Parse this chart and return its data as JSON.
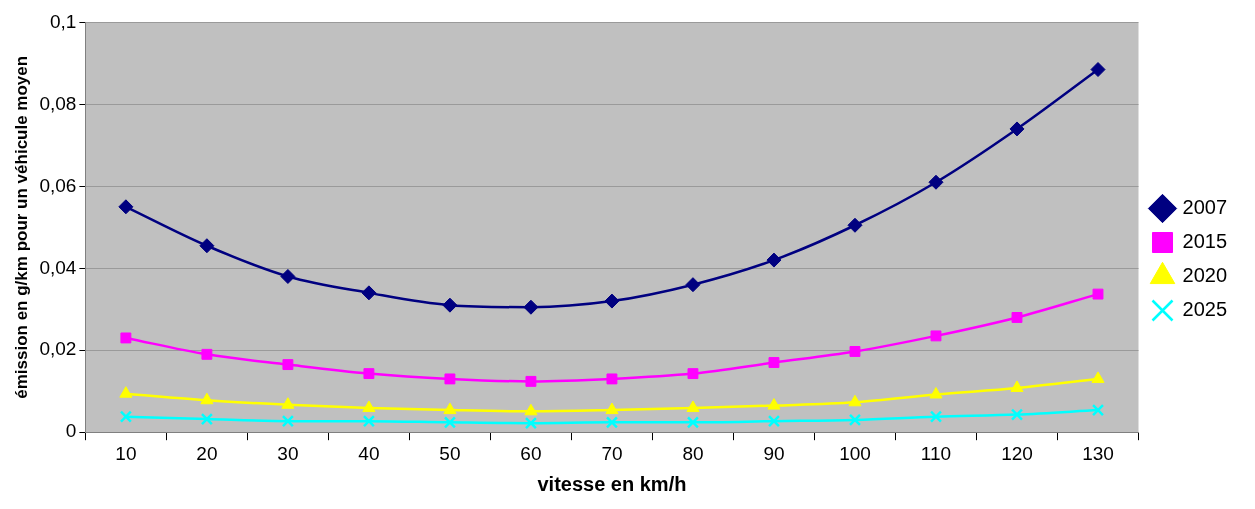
{
  "chart_data": {
    "type": "line",
    "xlabel": "vitesse en km/h",
    "ylabel": "émission en g/km pour un véhicule moyen",
    "categories": [
      "10",
      "20",
      "30",
      "40",
      "50",
      "60",
      "70",
      "80",
      "90",
      "100",
      "110",
      "120",
      "130"
    ],
    "series": [
      {
        "name": "2007",
        "color": "#000080",
        "marker": "diamond",
        "values": [
          0.055,
          0.0455,
          0.038,
          0.034,
          0.031,
          0.0305,
          0.032,
          0.036,
          0.042,
          0.0505,
          0.061,
          0.074,
          0.0885
        ]
      },
      {
        "name": "2015",
        "color": "#ff00ff",
        "marker": "square",
        "values": [
          0.023,
          0.019,
          0.0165,
          0.0143,
          0.013,
          0.0124,
          0.013,
          0.0143,
          0.017,
          0.0197,
          0.0235,
          0.028,
          0.0337
        ]
      },
      {
        "name": "2020",
        "color": "#ffff00",
        "marker": "triangle",
        "values": [
          0.0094,
          0.0078,
          0.0067,
          0.0059,
          0.0054,
          0.0051,
          0.0054,
          0.0059,
          0.0065,
          0.0073,
          0.0092,
          0.0108,
          0.013
        ]
      },
      {
        "name": "2025",
        "color": "#00ffff",
        "marker": "cross",
        "values": [
          0.0038,
          0.0032,
          0.0027,
          0.0027,
          0.0024,
          0.0022,
          0.0024,
          0.0024,
          0.0027,
          0.003,
          0.0038,
          0.0043,
          0.0054
        ]
      }
    ],
    "ylim": [
      0,
      0.1
    ],
    "yticks": [
      0,
      {
        "value": 0.02,
        "label": "0,02"
      },
      {
        "value": 0.04,
        "label": "0,04"
      },
      {
        "value": 0.06,
        "label": "0,06"
      },
      {
        "value": 0.08,
        "label": "0,08"
      },
      {
        "value": 0.1,
        "label": "0,1"
      }
    ],
    "grid": "y",
    "legend": "right",
    "line_style": "solid"
  }
}
